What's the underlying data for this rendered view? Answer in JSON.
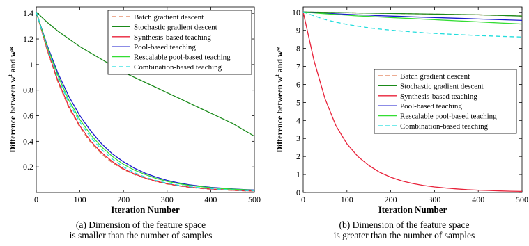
{
  "chart_data": [
    {
      "type": "line",
      "xlabel": "Iteration Number",
      "ylabel": "Difference between w",
      "ylabel_sup": "t",
      "ylabel_tail": " and w*",
      "xlim": [
        0,
        500
      ],
      "ylim": [
        0,
        1.45
      ],
      "xticks": [
        0,
        100,
        200,
        300,
        400,
        500
      ],
      "yticks": [
        0.2,
        0.4,
        0.6,
        0.8,
        1,
        1.2,
        1.4
      ],
      "ytick_labels": [
        "0.2",
        "0.4",
        "0.6",
        "0.8",
        "1",
        "1.2",
        "1.4"
      ],
      "legend_position": "top-right",
      "caption_lines": [
        "(a) Dimension of the feature space",
        "is smaller than the number of samples"
      ],
      "x": [
        0,
        25,
        50,
        75,
        100,
        125,
        150,
        175,
        200,
        225,
        250,
        275,
        300,
        325,
        350,
        375,
        400,
        425,
        450,
        475,
        500
      ],
      "series": [
        {
          "name": "Batch gradient descent",
          "color": "#e07b50",
          "dash": "dashed",
          "values": [
            1.41,
            1.11,
            0.86,
            0.66,
            0.51,
            0.39,
            0.3,
            0.23,
            0.18,
            0.14,
            0.11,
            0.085,
            0.066,
            0.052,
            0.041,
            0.032,
            0.026,
            0.021,
            0.017,
            0.013,
            0.011
          ]
        },
        {
          "name": "Stochastic gradient descent",
          "color": "#1a8a1a",
          "dash": "solid",
          "values": [
            1.41,
            1.33,
            1.26,
            1.2,
            1.14,
            1.09,
            1.04,
            0.99,
            0.94,
            0.9,
            0.86,
            0.82,
            0.78,
            0.74,
            0.7,
            0.66,
            0.62,
            0.58,
            0.54,
            0.49,
            0.44
          ]
        },
        {
          "name": "Synthesis-based teaching",
          "color": "#e8223a",
          "dash": "solid",
          "values": [
            1.41,
            1.12,
            0.87,
            0.67,
            0.52,
            0.4,
            0.31,
            0.24,
            0.185,
            0.145,
            0.113,
            0.088,
            0.069,
            0.054,
            0.043,
            0.034,
            0.027,
            0.022,
            0.018,
            0.014,
            0.012
          ]
        },
        {
          "name": "Pool-based teaching",
          "color": "#1a1acc",
          "dash": "solid",
          "values": [
            1.41,
            1.15,
            0.93,
            0.75,
            0.6,
            0.48,
            0.38,
            0.3,
            0.24,
            0.19,
            0.15,
            0.12,
            0.095,
            0.076,
            0.061,
            0.05,
            0.041,
            0.034,
            0.028,
            0.024,
            0.02
          ]
        },
        {
          "name": "Rescalable pool-based teaching",
          "color": "#33dd33",
          "dash": "solid",
          "values": [
            1.41,
            1.14,
            0.91,
            0.72,
            0.57,
            0.45,
            0.355,
            0.28,
            0.22,
            0.175,
            0.14,
            0.11,
            0.087,
            0.07,
            0.056,
            0.046,
            0.038,
            0.031,
            0.026,
            0.022,
            0.018
          ]
        },
        {
          "name": "Combination-based teaching",
          "color": "#22dddd",
          "dash": "dashed",
          "values": [
            1.41,
            1.13,
            0.89,
            0.7,
            0.55,
            0.43,
            0.335,
            0.26,
            0.2,
            0.155,
            0.12,
            0.094,
            0.074,
            0.058,
            0.046,
            0.037,
            0.03,
            0.024,
            0.02,
            0.016,
            0.013
          ]
        }
      ]
    },
    {
      "type": "line",
      "xlabel": "Iteration Number",
      "ylabel": "Difference between w",
      "ylabel_sup": "t",
      "ylabel_tail": " and w*",
      "xlim": [
        0,
        500
      ],
      "ylim": [
        0,
        10.3
      ],
      "xticks": [
        0,
        100,
        200,
        300,
        400,
        500
      ],
      "yticks": [
        0,
        1,
        2,
        3,
        4,
        5,
        6,
        7,
        8,
        9,
        10
      ],
      "ytick_labels": [
        "0",
        "1",
        "2",
        "3",
        "4",
        "5",
        "6",
        "7",
        "8",
        "9",
        "10"
      ],
      "legend_position": "center-right",
      "caption_lines": [
        "(b) Dimension of the feature space",
        "is greater than the number of samples"
      ],
      "x": [
        0,
        25,
        50,
        75,
        100,
        125,
        150,
        175,
        200,
        225,
        250,
        275,
        300,
        325,
        350,
        375,
        400,
        425,
        450,
        475,
        500
      ],
      "series": [
        {
          "name": "Batch gradient descent",
          "color": "#e07b50",
          "dash": "dashed",
          "values": [
            10.02,
            10.01,
            10.0,
            9.99,
            9.98,
            9.97,
            9.96,
            9.95,
            9.94,
            9.93,
            9.92,
            9.91,
            9.9,
            9.89,
            9.88,
            9.87,
            9.86,
            9.84,
            9.83,
            9.81,
            9.8
          ]
        },
        {
          "name": "Stochastic gradient descent",
          "color": "#1a8a1a",
          "dash": "solid",
          "values": [
            10.02,
            10.01,
            10.0,
            9.99,
            9.98,
            9.97,
            9.96,
            9.95,
            9.94,
            9.93,
            9.92,
            9.91,
            9.9,
            9.89,
            9.88,
            9.87,
            9.86,
            9.84,
            9.83,
            9.81,
            9.79
          ]
        },
        {
          "name": "Synthesis-based teaching",
          "color": "#e8223a",
          "dash": "solid",
          "values": [
            10.02,
            7.3,
            5.2,
            3.7,
            2.7,
            2.0,
            1.5,
            1.12,
            0.85,
            0.65,
            0.5,
            0.39,
            0.31,
            0.25,
            0.2,
            0.16,
            0.13,
            0.11,
            0.09,
            0.075,
            0.06
          ]
        },
        {
          "name": "Pool-based teaching",
          "color": "#1a1acc",
          "dash": "solid",
          "values": [
            10.02,
            9.98,
            9.95,
            9.92,
            9.89,
            9.86,
            9.84,
            9.81,
            9.79,
            9.77,
            9.75,
            9.73,
            9.71,
            9.69,
            9.67,
            9.65,
            9.63,
            9.61,
            9.59,
            9.57,
            9.55
          ]
        },
        {
          "name": "Rescalable pool-based teaching",
          "color": "#33dd33",
          "dash": "solid",
          "values": [
            10.02,
            9.97,
            9.92,
            9.88,
            9.84,
            9.8,
            9.77,
            9.74,
            9.71,
            9.68,
            9.65,
            9.62,
            9.59,
            9.56,
            9.53,
            9.5,
            9.47,
            9.44,
            9.41,
            9.38,
            9.35
          ]
        },
        {
          "name": "Combination-based teaching",
          "color": "#22dddd",
          "dash": "dashed",
          "values": [
            10.02,
            9.8,
            9.6,
            9.45,
            9.33,
            9.23,
            9.14,
            9.07,
            9.01,
            8.96,
            8.91,
            8.87,
            8.83,
            8.8,
            8.77,
            8.74,
            8.71,
            8.69,
            8.67,
            8.65,
            8.63
          ]
        }
      ]
    }
  ]
}
